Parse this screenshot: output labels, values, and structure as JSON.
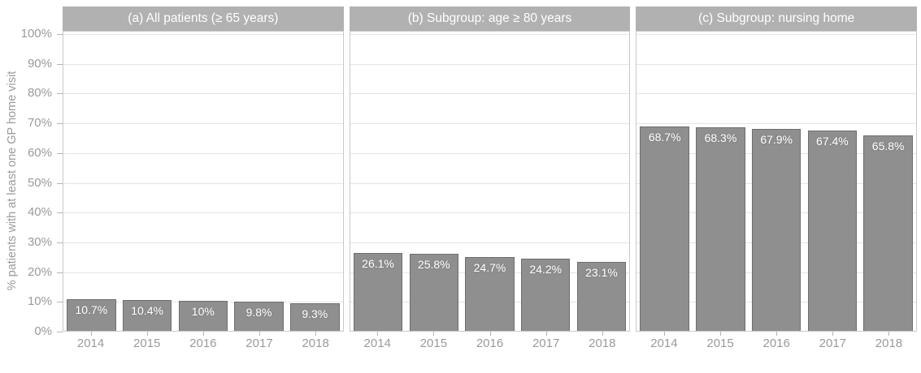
{
  "figure": {
    "y_axis_title": "% patients with at least one GP home visit",
    "y_ticks": [
      {
        "label": "100%",
        "value": 100
      },
      {
        "label": "90%",
        "value": 90
      },
      {
        "label": "80%",
        "value": 80
      },
      {
        "label": "70%",
        "value": 70
      },
      {
        "label": "60%",
        "value": 60
      },
      {
        "label": "50%",
        "value": 50
      },
      {
        "label": "40%",
        "value": 40
      },
      {
        "label": "30%",
        "value": 30
      },
      {
        "label": "20%",
        "value": 20
      },
      {
        "label": "10%",
        "value": 10
      },
      {
        "label": "0%",
        "value": 0
      }
    ],
    "colors": {
      "strip_bg": "#b1b1b1",
      "strip_text": "#ffffff",
      "bar_fill": "#8f8f8f",
      "bar_border": "#6e6e6e",
      "panel_border": "#c9c9c9",
      "gridline": "#e4e4e4",
      "tick": "#b3b3b3",
      "axis_text": "#9a9a9a",
      "bar_label": "#ffffff"
    }
  },
  "chart_data": [
    {
      "type": "bar",
      "title": "(a) All patients (≥ 65 years)",
      "categories": [
        "2014",
        "2015",
        "2016",
        "2017",
        "2018"
      ],
      "values": [
        10.7,
        10.4,
        10,
        9.8,
        9.3
      ],
      "bar_labels": [
        "10.7%",
        "10.4%",
        "10%",
        "9.8%",
        "9.3%"
      ],
      "xlabel": "",
      "ylabel": "% patients with at least one GP home visit",
      "ylim": [
        0,
        100
      ],
      "grid": "major-horizontal",
      "legend": "none"
    },
    {
      "type": "bar",
      "title": "(b) Subgroup: age ≥ 80 years",
      "categories": [
        "2014",
        "2015",
        "2016",
        "2017",
        "2018"
      ],
      "values": [
        26.1,
        25.8,
        24.7,
        24.2,
        23.1
      ],
      "bar_labels": [
        "26.1%",
        "25.8%",
        "24.7%",
        "24.2%",
        "23.1%"
      ],
      "xlabel": "",
      "ylabel": "% patients with at least one GP home visit",
      "ylim": [
        0,
        100
      ],
      "grid": "major-horizontal",
      "legend": "none"
    },
    {
      "type": "bar",
      "title": "(c) Subgroup: nursing home",
      "categories": [
        "2014",
        "2015",
        "2016",
        "2017",
        "2018"
      ],
      "values": [
        68.7,
        68.3,
        67.9,
        67.4,
        65.8
      ],
      "bar_labels": [
        "68.7%",
        "68.3%",
        "67.9%",
        "67.4%",
        "65.8%"
      ],
      "xlabel": "",
      "ylabel": "% patients with at least one GP home visit",
      "ylim": [
        0,
        100
      ],
      "grid": "major-horizontal",
      "legend": "none"
    }
  ]
}
